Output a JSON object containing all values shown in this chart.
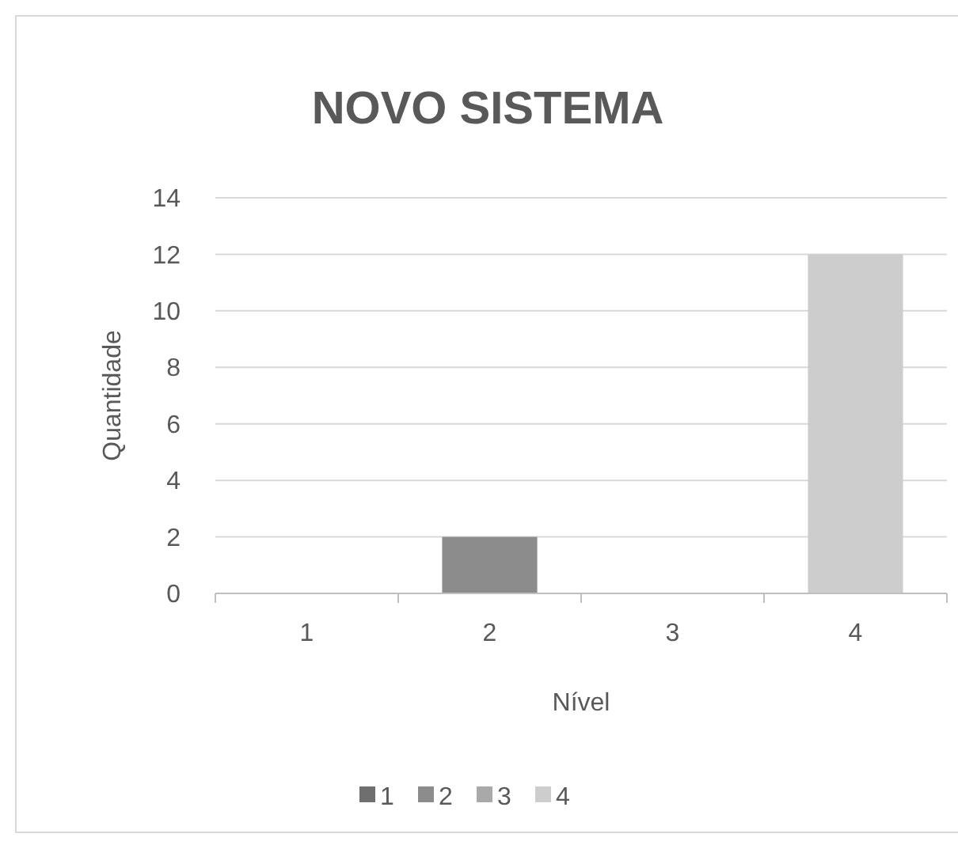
{
  "chart_data": {
    "type": "bar",
    "title": "NOVO SISTEMA",
    "xlabel": "Nível",
    "ylabel": "Quantidade",
    "categories": [
      "1",
      "2",
      "3",
      "4"
    ],
    "series": [
      {
        "name": "1",
        "color": "#6f6f6f",
        "values": [
          0,
          null,
          null,
          null
        ]
      },
      {
        "name": "2",
        "color": "#8c8c8c",
        "values": [
          null,
          2,
          null,
          null
        ]
      },
      {
        "name": "3",
        "color": "#a9a9a9",
        "values": [
          null,
          null,
          0,
          null
        ]
      },
      {
        "name": "4",
        "color": "#cdcdcd",
        "values": [
          null,
          null,
          null,
          12
        ]
      }
    ],
    "ylim": [
      0,
      14
    ],
    "yticks": [
      0,
      2,
      4,
      6,
      8,
      10,
      12,
      14
    ],
    "grid": "y",
    "legend": "bottom"
  }
}
